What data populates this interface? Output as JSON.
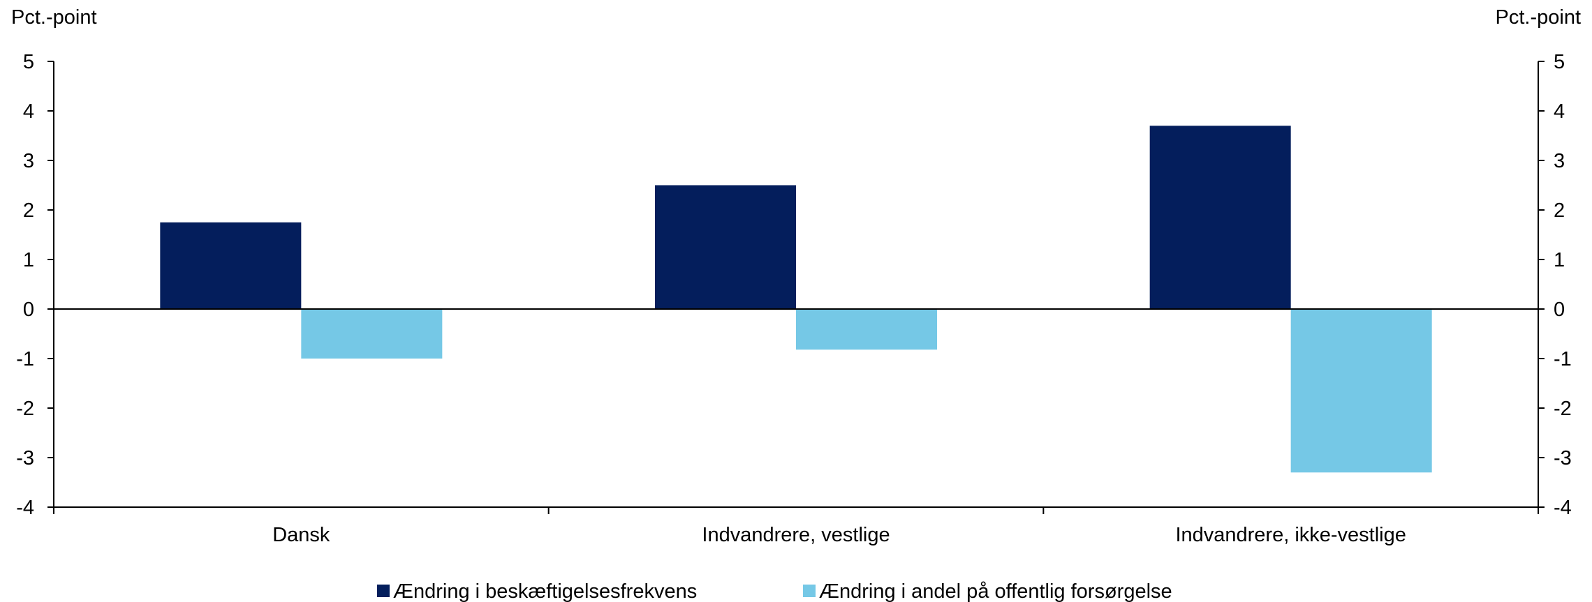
{
  "chart_data": {
    "type": "bar",
    "title": "",
    "xlabel": "",
    "ylabel_left": "Pct.-point",
    "ylabel_right": "Pct.-point",
    "ylim": [
      -4,
      5
    ],
    "yticks": [
      5,
      4,
      3,
      2,
      1,
      0,
      -1,
      -2,
      -3,
      -4
    ],
    "categories": [
      "Dansk",
      "Indvandrere, vestlige",
      "Indvandrere, ikke-vestlige"
    ],
    "series": [
      {
        "name": "Ændring i beskæftigelsesfrekvens",
        "color": "#041e5c",
        "values": [
          1.75,
          2.5,
          3.7
        ]
      },
      {
        "name": "Ændring i andel på offentlig forsørgelse",
        "color": "#75c8e6",
        "values": [
          -1.0,
          -0.82,
          -3.3
        ]
      }
    ],
    "grid": false,
    "legend_position": "bottom-center"
  }
}
